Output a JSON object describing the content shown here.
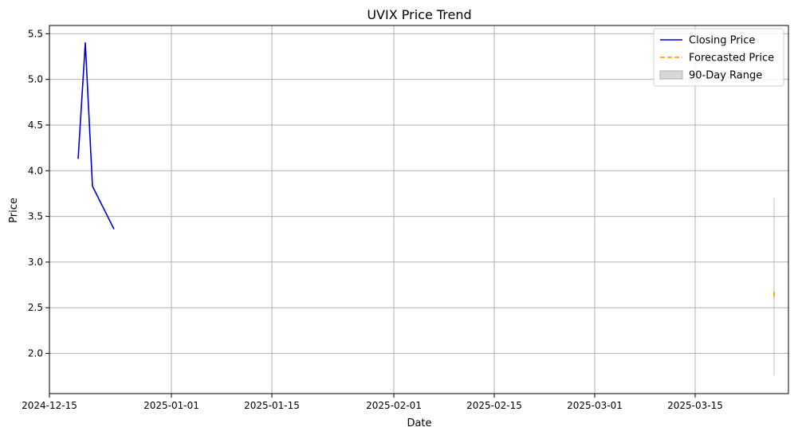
{
  "chart_data": {
    "type": "line",
    "title": "UVIX Price Trend",
    "xlabel": "Date",
    "ylabel": "Price",
    "x_ticks": [
      "2024-12-15",
      "2025-01-01",
      "2025-01-15",
      "2025-02-01",
      "2025-02-15",
      "2025-03-01",
      "2025-03-15"
    ],
    "y_ticks": [
      "2.0",
      "2.5",
      "3.0",
      "3.5",
      "4.0",
      "4.5",
      "5.0",
      "5.5"
    ],
    "xlim": [
      "2024-12-15",
      "2025-03-28"
    ],
    "ylim": [
      1.56,
      5.59
    ],
    "grid": true,
    "legend_position": "top-right",
    "series": [
      {
        "name": "Closing Price",
        "style": "solid",
        "color": "#0000cd",
        "points": [
          {
            "x": "2024-12-19",
            "y": 4.13
          },
          {
            "x": "2024-12-20",
            "y": 5.4
          },
          {
            "x": "2024-12-21",
            "y": 3.83
          },
          {
            "x": "2024-12-24",
            "y": 3.36
          }
        ]
      },
      {
        "name": "Forecasted Price",
        "style": "dashed",
        "color": "#ffa500",
        "points": [
          {
            "x": "2025-03-26",
            "y": 2.62
          },
          {
            "x": "2025-03-26",
            "y": 2.7
          }
        ]
      }
    ],
    "range_band": {
      "name": "90-Day Range",
      "color": "#b0b0b0",
      "x": "2025-03-26",
      "low": 1.76,
      "high": 3.7
    }
  }
}
